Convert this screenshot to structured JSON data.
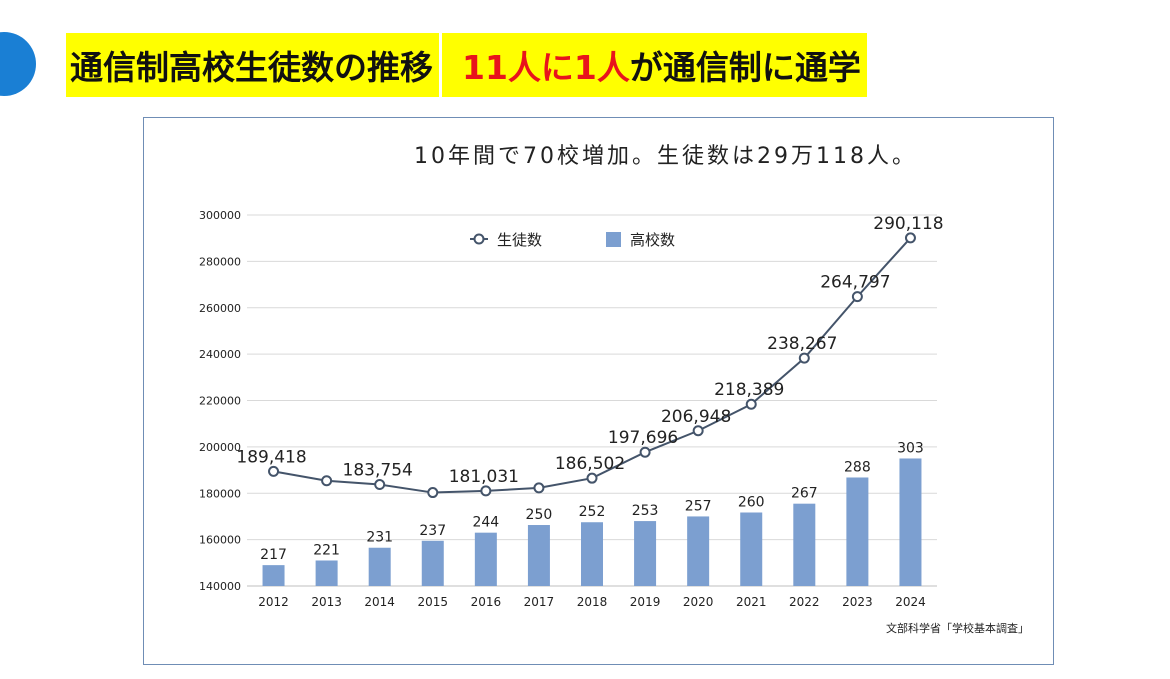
{
  "header": {
    "title_left": "通信制高校生徒数の推移",
    "title_right_red1": "11人に1人",
    "title_right_rest": "が通信制に通学"
  },
  "chart_data": {
    "type": "bar+line",
    "title": "10年間で70校増加。生徒数は29万118人。",
    "categories": [
      "2012",
      "2013",
      "2014",
      "2015",
      "2016",
      "2017",
      "2018",
      "2019",
      "2020",
      "2021",
      "2022",
      "2023",
      "2024"
    ],
    "ylim": [
      140000,
      300000
    ],
    "yticks": [
      140000,
      160000,
      180000,
      200000,
      220000,
      240000,
      260000,
      280000,
      300000
    ],
    "ytick_labels": [
      "140000",
      "160000",
      "180000",
      "200000",
      "220000",
      "240000",
      "260000",
      "280000",
      "300000"
    ],
    "grid": true,
    "legend_position": "top-center",
    "series": [
      {
        "name": "生徒数",
        "kind": "line",
        "color": "#44546a",
        "values": [
          189418,
          185400,
          183754,
          180300,
          181031,
          182300,
          186502,
          197696,
          206948,
          218389,
          238267,
          264797,
          290118
        ],
        "labels": [
          "189,418",
          "",
          "183,754",
          "",
          "181,031",
          "",
          "186,502",
          "197,696",
          "206,948",
          "218,389",
          "238,267",
          "264,797",
          "290,118"
        ]
      },
      {
        "name": "高校数",
        "kind": "bar",
        "color": "#7c9fd0",
        "values": [
          217,
          221,
          231,
          237,
          244,
          250,
          252,
          253,
          257,
          260,
          267,
          288,
          303
        ],
        "labels": [
          "217",
          "221",
          "231",
          "237",
          "244",
          "250",
          "252",
          "253",
          "257",
          "260",
          "267",
          "288",
          "303"
        ],
        "bar_tops_in_axis_units": [
          149000,
          151000,
          156500,
          159500,
          163000,
          166300,
          167500,
          168000,
          170000,
          171700,
          175500,
          186800,
          195000
        ]
      }
    ],
    "source": "文部科学省「学校基本調査」"
  }
}
